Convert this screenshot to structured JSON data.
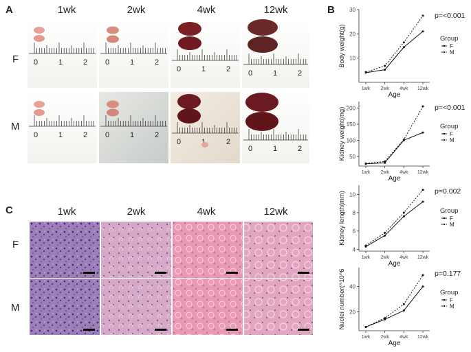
{
  "panel_a": {
    "letter": "A",
    "columns": [
      "1wk",
      "2wk",
      "4wk",
      "12wk"
    ],
    "rows": [
      "F",
      "M"
    ],
    "ruler_labels": [
      "0",
      "1",
      "2"
    ]
  },
  "panel_b": {
    "letter": "B"
  },
  "panel_c": {
    "letter": "C",
    "columns": [
      "1wk",
      "2wk",
      "4wk",
      "12wk"
    ],
    "rows": [
      "F",
      "M"
    ]
  },
  "colors": {
    "he_purple": "#8a6aa8",
    "he_pink": "#e7a7bd",
    "kidney_red": "#7a1f24",
    "kidney_pink": "#e8a098"
  },
  "chart_data": [
    {
      "type": "line",
      "ylabel": "Body weight(g)",
      "xlabel": "Age",
      "categories": [
        "1wk",
        "2wk",
        "4wk",
        "12wk"
      ],
      "ylim": [
        0,
        30
      ],
      "yticks": [
        10,
        20,
        30
      ],
      "pvalue": "p=<0.001",
      "legend_title": "Group",
      "series": [
        {
          "name": "F",
          "values": [
            4.0,
            5.2,
            14.5,
            21.0
          ],
          "dash": "solid"
        },
        {
          "name": "M",
          "values": [
            4.2,
            6.8,
            16.5,
            27.5
          ],
          "dash": "dashed"
        }
      ]
    },
    {
      "type": "line",
      "ylabel": "Kidney weight(mg)",
      "xlabel": "Age",
      "categories": [
        "1wk",
        "2wk",
        "4wk",
        "12wk"
      ],
      "ylim": [
        20,
        220
      ],
      "yticks": [
        50,
        100,
        150,
        200
      ],
      "pvalue": "p=<0.001",
      "legend_title": "Group",
      "series": [
        {
          "name": "F",
          "values": [
            27,
            30,
            100,
            124
          ],
          "dash": "solid"
        },
        {
          "name": "M",
          "values": [
            28,
            34,
            102,
            205
          ],
          "dash": "dashed"
        }
      ]
    },
    {
      "type": "line",
      "ylabel": "Kidney length(mm)",
      "xlabel": "Age",
      "categories": [
        "1wk",
        "2wk",
        "4wk",
        "12wk"
      ],
      "ylim": [
        3.8,
        11
      ],
      "yticks": [
        4,
        6,
        8,
        10
      ],
      "pvalue": "p=0.002",
      "legend_title": "Group",
      "series": [
        {
          "name": "F",
          "values": [
            4.3,
            5.5,
            7.6,
            9.2
          ],
          "dash": "solid"
        },
        {
          "name": "M",
          "values": [
            4.4,
            5.8,
            8.0,
            10.5
          ],
          "dash": "dashed"
        }
      ]
    },
    {
      "type": "line",
      "ylabel": "Nuclei number(^10^6",
      "xlabel": "Age",
      "categories": [
        "1wk",
        "2wk",
        "4wk",
        "12wk"
      ],
      "ylim": [
        5,
        55
      ],
      "yticks": [
        20,
        40
      ],
      "pvalue": "p=0.177",
      "legend_title": "Group",
      "series": [
        {
          "name": "F",
          "values": [
            8,
            14,
            21,
            40
          ],
          "dash": "solid"
        },
        {
          "name": "M",
          "values": [
            8,
            15,
            26,
            49
          ],
          "dash": "dashed"
        }
      ]
    }
  ]
}
